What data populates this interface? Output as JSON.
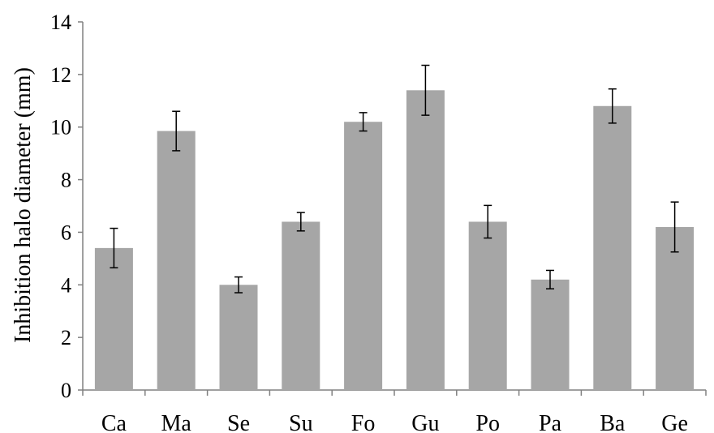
{
  "chart_data": {
    "type": "bar",
    "title": "",
    "xlabel": "",
    "ylabel": "Inhibition halo diameter (mm)",
    "categories": [
      "Ca",
      "Ma",
      "Se",
      "Su",
      "Fo",
      "Gu",
      "Po",
      "Pa",
      "Ba",
      "Ge"
    ],
    "values": [
      5.4,
      9.85,
      4.0,
      6.4,
      10.2,
      11.4,
      6.4,
      4.2,
      10.8,
      6.2
    ],
    "error": [
      0.75,
      0.75,
      0.3,
      0.35,
      0.35,
      0.95,
      0.62,
      0.35,
      0.65,
      0.95
    ],
    "ylim": [
      0,
      14
    ],
    "yticks": [
      0,
      2,
      4,
      6,
      8,
      10,
      12,
      14
    ],
    "grid": false,
    "bar_color": "#a6a6a6",
    "axis_color": "#808080",
    "error_color": "#000000"
  }
}
